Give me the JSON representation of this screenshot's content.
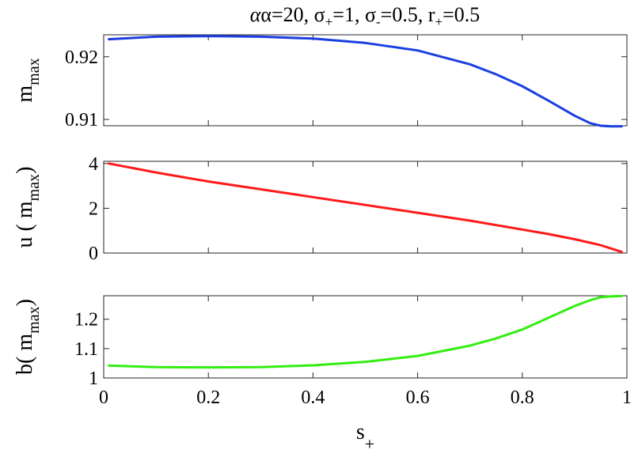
{
  "title": {
    "alpha": "α=20, σ",
    "sub1": "+",
    "part2": "=1, σ",
    "sub2": "-",
    "part3": "=0.5, r",
    "sub3": "+",
    "part4": "=0.5"
  },
  "chart_data": [
    {
      "type": "line",
      "ylabel_main": "m",
      "ylabel_sub": "max",
      "ylabel_suffix": "",
      "xlim": [
        0,
        1
      ],
      "ylim": [
        0.909,
        0.9235
      ],
      "yticks": [
        0.91,
        0.92
      ],
      "ytick_labels": [
        "0.91",
        "0.92"
      ],
      "grid": false,
      "series": [
        {
          "color": "#1c3fe0",
          "x": [
            0.01,
            0.1,
            0.2,
            0.3,
            0.4,
            0.5,
            0.6,
            0.7,
            0.75,
            0.8,
            0.85,
            0.9,
            0.93,
            0.95,
            0.97,
            0.99
          ],
          "y": [
            0.9228,
            0.9232,
            0.9233,
            0.9232,
            0.9229,
            0.9222,
            0.921,
            0.9188,
            0.9172,
            0.9153,
            0.913,
            0.9106,
            0.9094,
            0.909,
            0.9089,
            0.9089
          ]
        }
      ]
    },
    {
      "type": "line",
      "ylabel_main": "u ( m",
      "ylabel_sub": "max",
      "ylabel_suffix": ")",
      "xlim": [
        0,
        1
      ],
      "ylim": [
        0,
        4.1
      ],
      "yticks": [
        0,
        2,
        4
      ],
      "ytick_labels": [
        "0",
        "2",
        "4"
      ],
      "grid": false,
      "series": [
        {
          "color": "#ff1a1a",
          "x": [
            0.01,
            0.1,
            0.2,
            0.3,
            0.4,
            0.5,
            0.6,
            0.7,
            0.8,
            0.85,
            0.9,
            0.95,
            0.99
          ],
          "y": [
            4.0,
            3.6,
            3.2,
            2.85,
            2.5,
            2.15,
            1.8,
            1.45,
            1.05,
            0.85,
            0.62,
            0.35,
            0.05
          ]
        }
      ]
    },
    {
      "type": "line",
      "ylabel_main": "b( m",
      "ylabel_sub": "max",
      "ylabel_suffix": ")",
      "xlim": [
        0,
        1
      ],
      "ylim": [
        1.0,
        1.28
      ],
      "yticks": [
        1,
        1.1,
        1.2
      ],
      "ytick_labels": [
        "1",
        "1.1",
        "1.2"
      ],
      "xticks": [
        0,
        0.2,
        0.4,
        0.6,
        0.8,
        1
      ],
      "xtick_labels": [
        "0",
        "0.2",
        "0.4",
        "0.6",
        "0.8",
        "1"
      ],
      "grid": false,
      "series": [
        {
          "color": "#33ee11",
          "x": [
            0.01,
            0.1,
            0.2,
            0.3,
            0.4,
            0.5,
            0.6,
            0.7,
            0.75,
            0.8,
            0.85,
            0.9,
            0.93,
            0.95,
            0.97,
            0.99
          ],
          "y": [
            1.042,
            1.037,
            1.036,
            1.037,
            1.043,
            1.055,
            1.075,
            1.11,
            1.135,
            1.165,
            1.205,
            1.245,
            1.265,
            1.275,
            1.278,
            1.279
          ]
        }
      ]
    }
  ],
  "xlabel_main": "s",
  "xlabel_sub": "+"
}
